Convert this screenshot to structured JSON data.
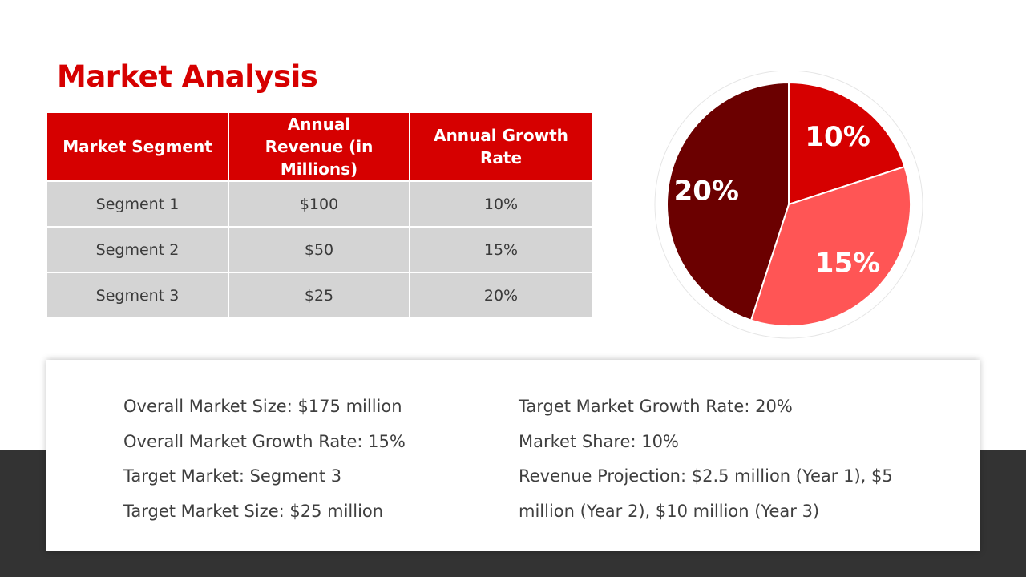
{
  "slide": {
    "title": "Market Analysis"
  },
  "table": {
    "headers": [
      "Market Segment",
      "Annual Revenue (in Millions)",
      "Annual Growth Rate"
    ],
    "rows": [
      [
        "Segment 1",
        "$100",
        "10%"
      ],
      [
        "Segment 2",
        "$50",
        "15%"
      ],
      [
        "Segment 3",
        "$25",
        "20%"
      ]
    ]
  },
  "chart_data": {
    "type": "pie",
    "title": "",
    "slices": [
      {
        "label": "10%",
        "value": 20,
        "color": "#D60000"
      },
      {
        "label": "15%",
        "value": 35,
        "color": "#FF5555"
      },
      {
        "label": "20%",
        "value": 45,
        "color": "#6B0000"
      }
    ]
  },
  "summary": {
    "left": [
      "Overall Market Size: $175 million",
      "Overall Market Growth Rate: 15%",
      "Target Market: Segment 3",
      "Target Market Size: $25 million"
    ],
    "right": [
      "Target Market Growth Rate: 20%",
      "Market Share: 10%",
      "Revenue Projection: $2.5 million (Year 1), $5 million (Year 2), $10 million (Year 3)"
    ]
  },
  "theme": {
    "accent": "#D60000",
    "band": "#333333",
    "cell": "#D4D4D4"
  }
}
